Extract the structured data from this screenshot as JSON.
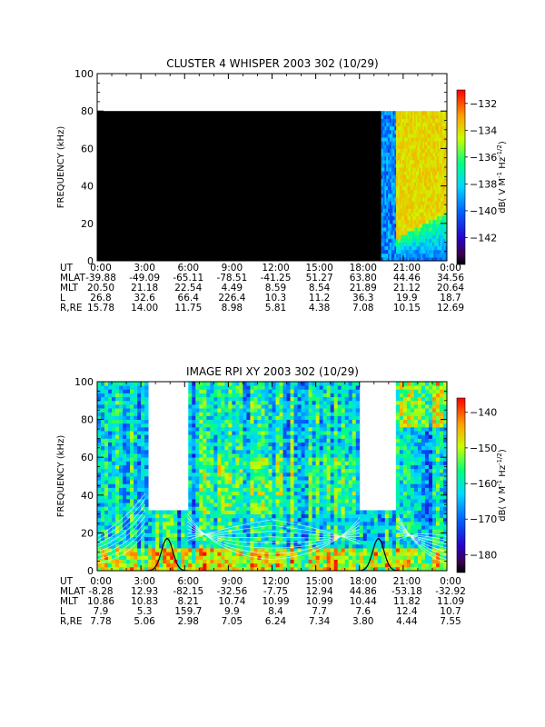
{
  "panels": [
    {
      "title": "CLUSTER 4 WHISPER 2003 302 (10/29)",
      "ylabel": "FREQUENCY (kHz)",
      "colorbar_label_parts": [
        "dB( V M",
        "-1",
        " Hz",
        "-1/2",
        ")"
      ],
      "colorbar_ticks": [
        "-132",
        "-134",
        "-136",
        "-138",
        "-140",
        "-142"
      ],
      "table": {
        "row_labels": [
          "UT",
          "MLAT",
          "MLT",
          "L",
          "R,RE"
        ],
        "rows": [
          [
            "0:00",
            "3:00",
            "6:00",
            "9:00",
            "12:00",
            "15:00",
            "18:00",
            "21:00",
            "0:00"
          ],
          [
            "-39.88",
            "-49.09",
            "-65.11",
            "-78.51",
            "-41.25",
            "51.27",
            "63.80",
            "44.46",
            "34.56"
          ],
          [
            "20.50",
            "21.18",
            "22.54",
            "4.49",
            "8.59",
            "8.54",
            "21.89",
            "21.12",
            "20.64"
          ],
          [
            "26.8",
            "32.6",
            "66.4",
            "226.4",
            "10.3",
            "11.2",
            "36.3",
            "19.9",
            "18.7"
          ],
          [
            "15.78",
            "14.00",
            "11.75",
            "8.98",
            "5.81",
            "4.38",
            "7.08",
            "10.15",
            "12.69"
          ]
        ]
      }
    },
    {
      "title": "IMAGE RPI XY 2003 302 (10/29)",
      "ylabel": "FREQUENCY (kHz)",
      "colorbar_label_parts": [
        "dB( V M",
        "-1",
        " Hz",
        "-1/2",
        ")"
      ],
      "colorbar_ticks": [
        "-140",
        "-150",
        "-160",
        "-170",
        "-180"
      ],
      "table": {
        "row_labels": [
          "UT",
          "MLAT",
          "MLT",
          "L",
          "R,RE"
        ],
        "rows": [
          [
            "0:00",
            "3:00",
            "6:00",
            "9:00",
            "12:00",
            "15:00",
            "18:00",
            "21:00",
            "0:00"
          ],
          [
            "-8.28",
            "12.93",
            "-82.15",
            "-32.56",
            "-7.75",
            "12.94",
            "44.86",
            "-53.18",
            "-32.92"
          ],
          [
            "10.86",
            "10.83",
            "8.21",
            "10.74",
            "10.99",
            "10.99",
            "10.44",
            "11.82",
            "11.09"
          ],
          [
            "7.9",
            "5.3",
            "159.7",
            "9.9",
            "8.4",
            "7.7",
            "7.6",
            "12.4",
            "10.7"
          ],
          [
            "7.78",
            "5.06",
            "2.98",
            "7.05",
            "6.24",
            "7.34",
            "3.80",
            "4.44",
            "7.55"
          ]
        ]
      }
    }
  ],
  "chart_data": [
    {
      "type": "heatmap",
      "title": "CLUSTER 4 WHISPER 2003 302 (10/29)",
      "ylabel": "FREQUENCY (kHz)",
      "x_ticks": [
        "0:00",
        "3:00",
        "6:00",
        "9:00",
        "12:00",
        "15:00",
        "18:00",
        "21:00",
        "0:00"
      ],
      "xlim_hours": [
        0,
        24
      ],
      "y_ticks": [
        0,
        20,
        40,
        60,
        80,
        100
      ],
      "ylim": [
        0,
        100
      ],
      "data_fmax_khz": 80,
      "colorbar": {
        "min": -144,
        "max": -131,
        "ticks": [
          -132,
          -134,
          -136,
          -138,
          -140,
          -142
        ]
      },
      "features": {
        "no_signal_until_hour": 19.5,
        "black_level_db": -144,
        "active_from_hour": 19.5,
        "strong_band_from_hour": 20.5,
        "strong_level_db": -134.5
      }
    },
    {
      "type": "heatmap",
      "title": "IMAGE RPI XY 2003 302 (10/29)",
      "ylabel": "FREQUENCY (kHz)",
      "x_ticks": [
        "0:00",
        "3:00",
        "6:00",
        "9:00",
        "12:00",
        "15:00",
        "18:00",
        "21:00",
        "0:00"
      ],
      "xlim_hours": [
        0,
        24
      ],
      "y_ticks": [
        0,
        20,
        40,
        60,
        80,
        100
      ],
      "ylim": [
        0,
        100
      ],
      "colorbar": {
        "min": -185,
        "max": -136,
        "ticks": [
          -140,
          -150,
          -160,
          -170,
          -180
        ]
      },
      "gaps_hours": [
        [
          3.4,
          6.2
        ],
        [
          18.0,
          20.6
        ]
      ],
      "gap_floor_khz": 31,
      "black_curve_peaks_hours": [
        4.8,
        19.3
      ]
    }
  ]
}
